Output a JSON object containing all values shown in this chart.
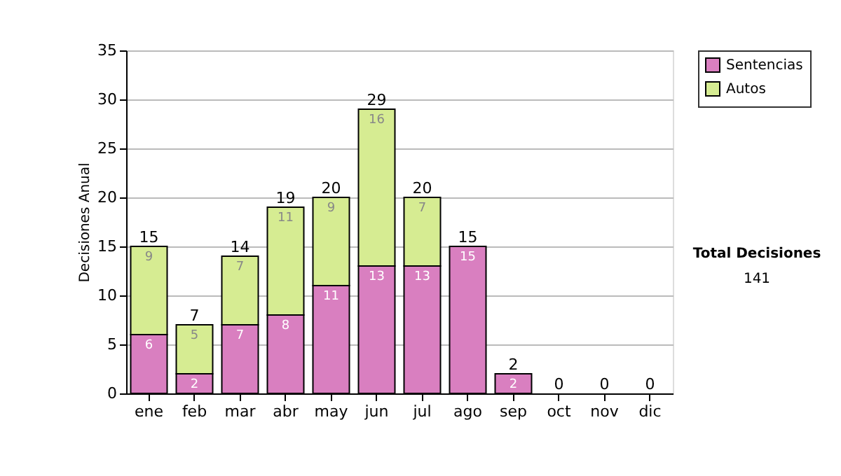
{
  "chart_data": {
    "type": "bar",
    "stacked": true,
    "ylabel": "Decisiones Anual",
    "categories": [
      "ene",
      "feb",
      "mar",
      "abr",
      "may",
      "jun",
      "jul",
      "ago",
      "sep",
      "oct",
      "nov",
      "dic"
    ],
    "series": [
      {
        "name": "Sentencias",
        "color": "#d97fc0",
        "values": [
          6,
          2,
          7,
          8,
          11,
          13,
          13,
          15,
          2,
          0,
          0,
          0
        ],
        "value_labels": [
          "6",
          "2",
          "7",
          "8",
          "11",
          "13",
          "13",
          "15",
          "2",
          null,
          null,
          null
        ]
      },
      {
        "name": "Autos",
        "color": "#d6ec92",
        "values": [
          9,
          5,
          7,
          11,
          9,
          16,
          7,
          0,
          0,
          0,
          0,
          0
        ],
        "value_labels": [
          "9",
          "5",
          "7",
          "11",
          "9",
          "16",
          "7",
          null,
          null,
          null,
          null,
          null
        ]
      }
    ],
    "totals": [
      "15",
      "7",
      "14",
      "19",
      "20",
      "29",
      "20",
      "15",
      "2",
      "0",
      "0",
      "0"
    ],
    "ylim": [
      0,
      35
    ],
    "yticks": [
      0,
      5,
      10,
      15,
      20,
      25,
      30,
      35
    ],
    "grid": "y",
    "legend": "right",
    "annotations": [
      "Total Decisiones",
      "141"
    ]
  }
}
